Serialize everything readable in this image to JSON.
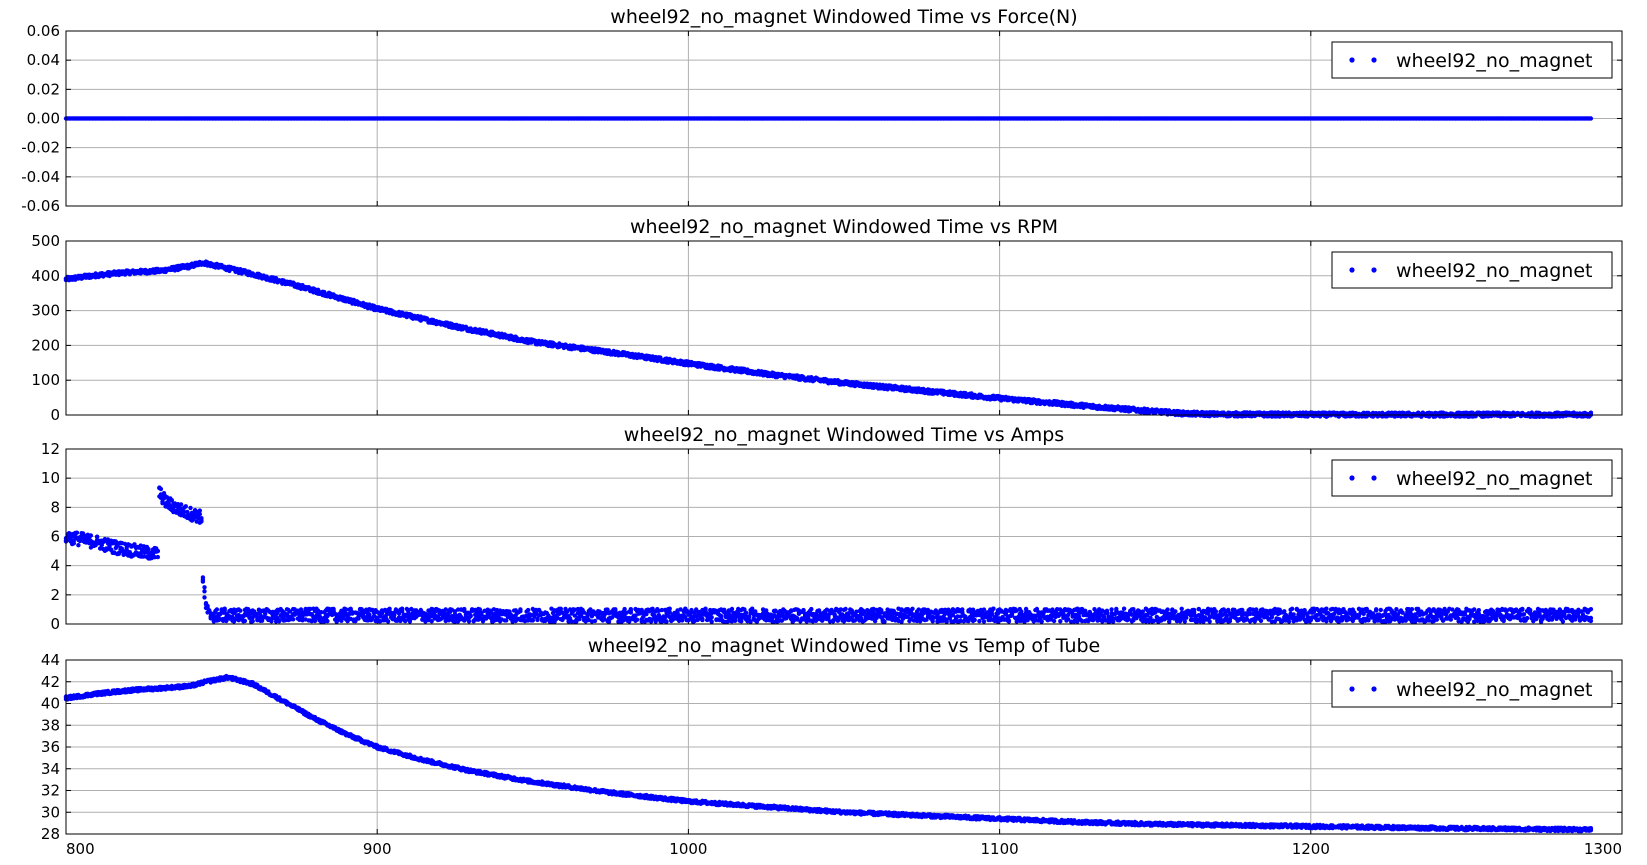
{
  "colors": {
    "series": "#0000ff",
    "grid": "#b0b0b0",
    "axes": "#000000",
    "background": "#ffffff"
  },
  "chart_data": [
    {
      "type": "scatter",
      "title": "wheel92_no_magnet Windowed Time vs Force(N)",
      "xlim": [
        800,
        1300
      ],
      "ylim": [
        -0.06,
        0.06
      ],
      "yticks": [
        "-0.06",
        "-0.04",
        "-0.02",
        "0.00",
        "0.02",
        "0.04",
        "0.06"
      ],
      "xticks": [
        "800",
        "900",
        "1000",
        "1100",
        "1200",
        "1300"
      ],
      "show_xtick_labels": false,
      "grid": true,
      "legend_location": "upper right",
      "series": [
        {
          "name": "wheel92_no_magnet",
          "x": [
            800,
            900,
            1000,
            1100,
            1200,
            1290
          ],
          "y": [
            0,
            0,
            0,
            0,
            0,
            0
          ],
          "spread": 0
        }
      ]
    },
    {
      "type": "scatter",
      "title": "wheel92_no_magnet Windowed Time vs RPM",
      "xlim": [
        800,
        1300
      ],
      "ylim": [
        0,
        500
      ],
      "yticks": [
        "0",
        "100",
        "200",
        "300",
        "400",
        "500"
      ],
      "xticks": [
        "800",
        "900",
        "1000",
        "1100",
        "1200",
        "1300"
      ],
      "show_xtick_labels": false,
      "grid": true,
      "legend_location": "upper right",
      "series": [
        {
          "name": "wheel92_no_magnet",
          "x": [
            800,
            810,
            820,
            830,
            840,
            844,
            850,
            860,
            875,
            900,
            925,
            950,
            975,
            1000,
            1025,
            1050,
            1075,
            1100,
            1125,
            1150,
            1160,
            1170,
            1200,
            1250,
            1290
          ],
          "y": [
            390,
            402,
            410,
            414,
            428,
            438,
            425,
            405,
            370,
            305,
            255,
            210,
            180,
            148,
            118,
            92,
            70,
            48,
            28,
            10,
            4,
            2,
            1,
            1,
            1
          ],
          "spread": 6
        }
      ]
    },
    {
      "type": "scatter",
      "title": "wheel92_no_magnet Windowed Time vs Amps",
      "xlim": [
        800,
        1300
      ],
      "ylim": [
        0,
        12
      ],
      "yticks": [
        "0",
        "2",
        "4",
        "6",
        "8",
        "10",
        "12"
      ],
      "xticks": [
        "800",
        "900",
        "1000",
        "1100",
        "1200",
        "1300"
      ],
      "show_xtick_labels": false,
      "grid": true,
      "legend_location": "upper right",
      "series": [
        {
          "name": "wheel92_no_magnet",
          "x": [
            800,
            805,
            810,
            815,
            820,
            825,
            829.9,
            830,
            832,
            835,
            838,
            841,
            843.9,
            844,
            845,
            846,
            850,
            900,
            950,
            1000,
            1050,
            1100,
            1150,
            1200,
            1250,
            1290
          ],
          "y": [
            6.0,
            5.8,
            5.6,
            5.3,
            5.1,
            4.9,
            4.8,
            9.0,
            8.4,
            8.0,
            7.7,
            7.5,
            7.3,
            3.0,
            1.2,
            0.6,
            0.6,
            0.6,
            0.6,
            0.6,
            0.6,
            0.6,
            0.6,
            0.6,
            0.6,
            0.6
          ],
          "spread": 0.45
        }
      ]
    },
    {
      "type": "scatter",
      "title": "wheel92_no_magnet Windowed Time vs Temp of Tube",
      "xlim": [
        800,
        1300
      ],
      "ylim": [
        28,
        44
      ],
      "yticks": [
        "28",
        "30",
        "32",
        "34",
        "36",
        "38",
        "40",
        "42",
        "44"
      ],
      "xticks": [
        "800",
        "900",
        "1000",
        "1100",
        "1200",
        "1300"
      ],
      "show_xtick_labels": true,
      "grid": true,
      "legend_location": "upper right",
      "series": [
        {
          "name": "wheel92_no_magnet",
          "x": [
            800,
            810,
            820,
            830,
            840,
            845,
            852,
            860,
            870,
            880,
            890,
            900,
            915,
            930,
            950,
            975,
            1000,
            1025,
            1050,
            1075,
            1100,
            1125,
            1150,
            1175,
            1200,
            1250,
            1290
          ],
          "y": [
            40.5,
            40.9,
            41.2,
            41.4,
            41.6,
            42.0,
            42.4,
            41.8,
            40.2,
            38.6,
            37.2,
            36.0,
            34.8,
            33.8,
            32.8,
            31.8,
            31.0,
            30.5,
            30.0,
            29.7,
            29.4,
            29.1,
            28.9,
            28.8,
            28.7,
            28.5,
            28.4
          ],
          "spread": 0.15
        }
      ]
    }
  ]
}
